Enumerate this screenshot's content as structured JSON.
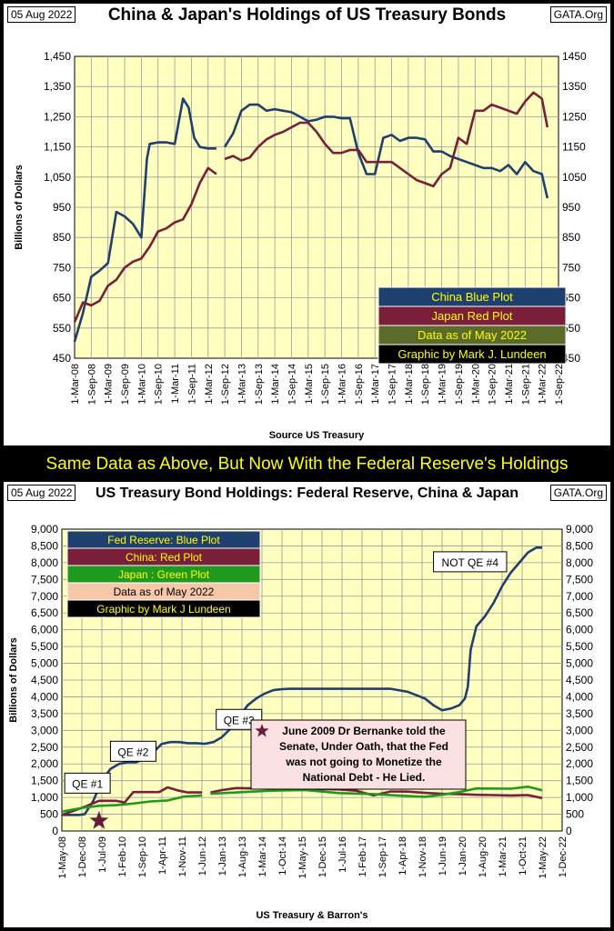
{
  "banner": "Same Data as Above, But Now With the Federal Reserve's Holdings",
  "colors": {
    "plot_bg": "#ffffc0",
    "blue": "#1f3f6e",
    "red": "#7a1f3a",
    "green": "#1f9a1f"
  },
  "chart_data": [
    {
      "type": "line",
      "date_label": "05 Aug 2022",
      "source_tag": "GATA.Org",
      "title": "China & Japan's Holdings of US Treasury Bonds",
      "xlabel": "Source US Treasury",
      "ylabel": "Billions  of  Dollars",
      "ylim": [
        450,
        1450
      ],
      "yticks_left": [
        "450",
        "550",
        "650",
        "750",
        "850",
        "950",
        "1,050",
        "1,150",
        "1,250",
        "1,350",
        "1,450"
      ],
      "yticks_right": [
        "450",
        "550",
        "650",
        "750",
        "850",
        "950",
        "1050",
        "1150",
        "1250",
        "1350",
        "1450"
      ],
      "xticks": [
        "1-Mar-08",
        "1-Sep-08",
        "1-Mar-09",
        "1-Sep-09",
        "1-Mar-10",
        "1-Sep-10",
        "1-Mar-11",
        "1-Sep-11",
        "1-Mar-12",
        "1-Sep-12",
        "1-Mar-13",
        "1-Sep-13",
        "1-Mar-14",
        "1-Sep-14",
        "1-Mar-15",
        "1-Sep-15",
        "1-Mar-16",
        "1-Sep-16",
        "1-Mar-17",
        "1-Sep-17",
        "1-Mar-18",
        "1-Sep-18",
        "1-Mar-19",
        "1-Sep-19",
        "1-Mar-20",
        "1-Sep-20",
        "1-Mar-21",
        "1-Sep-21",
        "1-Mar-22",
        "1-Sep-22"
      ],
      "legend": [
        "China Blue Plot",
        "Japan Red Plot",
        "Data as of May 2022",
        "Graphic by Mark J. Lundeen"
      ],
      "legend_placement": "bottom-right",
      "grid": true,
      "x_range": [
        "2008-03",
        "2022-09"
      ],
      "series": [
        {
          "name": "China Blue Plot",
          "color": "#1f3f6e",
          "x": [
            "2008-03",
            "2008-06",
            "2008-09",
            "2008-12",
            "2009-03",
            "2009-06",
            "2009-09",
            "2009-12",
            "2010-03",
            "2010-05",
            "2010-06",
            "2010-09",
            "2010-12",
            "2011-03",
            "2011-06",
            "2011-08",
            "2011-10",
            "2011-12",
            "2012-03",
            "2012-06",
            null,
            "2012-09",
            "2012-12",
            "2013-03",
            "2013-06",
            "2013-09",
            "2013-12",
            "2014-03",
            "2014-06",
            "2014-09",
            "2014-12",
            "2015-03",
            "2015-06",
            "2015-09",
            "2015-12",
            "2016-03",
            "2016-06",
            "2016-09",
            "2016-12",
            "2017-03",
            "2017-06",
            "2017-09",
            "2017-12",
            "2018-03",
            "2018-06",
            "2018-09",
            "2018-12",
            "2019-03",
            "2019-06",
            "2019-09",
            "2019-12",
            "2020-03",
            "2020-06",
            "2020-09",
            "2020-12",
            "2021-03",
            "2021-06",
            "2021-09",
            "2021-12",
            "2022-03",
            "2022-05"
          ],
          "y": [
            505,
            600,
            720,
            740,
            765,
            935,
            920,
            895,
            850,
            1110,
            1160,
            1165,
            1165,
            1160,
            1310,
            1280,
            1180,
            1150,
            1145,
            1145,
            null,
            1150,
            1195,
            1270,
            1290,
            1290,
            1270,
            1275,
            1270,
            1265,
            1250,
            1235,
            1240,
            1250,
            1250,
            1245,
            1245,
            1130,
            1060,
            1060,
            1180,
            1190,
            1170,
            1180,
            1180,
            1175,
            1135,
            1135,
            1120,
            1110,
            1100,
            1090,
            1080,
            1080,
            1070,
            1090,
            1060,
            1100,
            1070,
            1060,
            980
          ]
        },
        {
          "name": "Japan Red Plot",
          "color": "#7a1f3a",
          "x": [
            "2008-03",
            "2008-06",
            "2008-09",
            "2008-12",
            "2009-03",
            "2009-06",
            "2009-09",
            "2009-12",
            "2010-03",
            "2010-06",
            "2010-09",
            "2010-12",
            "2011-03",
            "2011-06",
            "2011-09",
            "2011-12",
            "2012-03",
            "2012-06",
            null,
            "2012-09",
            "2012-12",
            "2013-03",
            "2013-06",
            "2013-09",
            "2013-12",
            "2014-03",
            "2014-06",
            "2014-09",
            "2014-12",
            "2015-03",
            "2015-06",
            "2015-09",
            "2015-12",
            "2016-03",
            "2016-06",
            "2016-09",
            "2016-12",
            "2017-03",
            "2017-06",
            "2017-09",
            "2017-12",
            "2018-03",
            "2018-06",
            "2018-09",
            "2018-12",
            "2019-03",
            "2019-06",
            "2019-09",
            "2019-12",
            "2020-03",
            "2020-06",
            "2020-09",
            "2020-12",
            "2021-03",
            "2021-06",
            "2021-09",
            "2021-12",
            "2022-03",
            "2022-05"
          ],
          "y": [
            570,
            635,
            625,
            640,
            690,
            710,
            750,
            770,
            780,
            820,
            870,
            880,
            900,
            910,
            960,
            1030,
            1080,
            1060,
            null,
            1110,
            1120,
            1105,
            1115,
            1150,
            1175,
            1190,
            1200,
            1215,
            1230,
            1230,
            1200,
            1160,
            1130,
            1130,
            1140,
            1140,
            1100,
            1100,
            1100,
            1100,
            1080,
            1060,
            1040,
            1030,
            1020,
            1060,
            1080,
            1180,
            1160,
            1270,
            1270,
            1290,
            1280,
            1270,
            1260,
            1300,
            1330,
            1310,
            1215
          ]
        }
      ]
    },
    {
      "type": "line",
      "date_label": "05 Aug 2022",
      "source_tag": "GATA.Org",
      "title": "US Treasury Bond Holdings: Federal Reserve, China & Japan",
      "xlabel": "US Treasury & Barron's",
      "ylabel": "Billions of Dollars",
      "ylim": [
        0,
        9000
      ],
      "yticks": [
        "0",
        "500",
        "1,000",
        "1,500",
        "2,000",
        "2,500",
        "3,000",
        "3,500",
        "4,000",
        "4,500",
        "5,000",
        "5,500",
        "6,000",
        "6,500",
        "7,000",
        "7,500",
        "8,000",
        "8,500",
        "9,000"
      ],
      "xticks": [
        "1-May-08",
        "1-Dec-08",
        "1-Jul-09",
        "1-Feb-10",
        "1-Sep-10",
        "1-Apr-11",
        "1-Nov-11",
        "1-Jun-12",
        "1-Jan-13",
        "1-Aug-13",
        "1-Mar-14",
        "1-Oct-14",
        "1-May-15",
        "1-Dec-15",
        "1-Jul-16",
        "1-Feb-17",
        "1-Sep-17",
        "1-Apr-18",
        "1-Nov-18",
        "1-Jun-19",
        "1-Jan-20",
        "1-Aug-20",
        "1-Mar-21",
        "1-Oct-21",
        "1-May-22",
        "1-Dec-22"
      ],
      "legend": [
        "Fed Reserve: Blue Plot",
        "China: Red Plot",
        "Japan : Green Plot",
        "Data as of May 2022",
        "Graphic by Mark J Lundeen"
      ],
      "legend_placement": "top-left",
      "grid": true,
      "x_range": [
        "2008-05",
        "2022-12"
      ],
      "annotations": [
        {
          "text": "QE #1",
          "x": "2008-06",
          "y": 1400
        },
        {
          "text": "QE #2",
          "x": "2009-10",
          "y": 2350
        },
        {
          "text": "QE #3",
          "x": "2012-11",
          "y": 3300
        },
        {
          "text": "NOT QE #4",
          "x": "2019-03",
          "y": 8000
        }
      ],
      "note": [
        "June 2009 Dr Bernanke told the",
        "Senate, Under Oath, that the Fed",
        "was not going to Monetize the",
        "National Debt - He Lied."
      ],
      "marker": {
        "x": "2009-06",
        "y": 300
      },
      "series": [
        {
          "name": "Fed Reserve: Blue Plot",
          "color": "#1f3f6e",
          "x": [
            "2008-05",
            "2008-08",
            "2008-11",
            "2009-01",
            "2009-04",
            "2009-07",
            "2009-10",
            "2010-01",
            "2010-04",
            "2010-07",
            "2010-10",
            "2011-01",
            "2011-04",
            "2011-07",
            "2011-10",
            "2012-01",
            "2012-04",
            "2012-07",
            "2012-10",
            "2013-01",
            "2013-04",
            "2013-07",
            "2013-10",
            "2014-01",
            "2014-04",
            "2014-07",
            "2014-10",
            "2015-01",
            "2015-06",
            "2016-01",
            "2016-06",
            "2017-01",
            "2017-06",
            "2017-12",
            "2018-06",
            "2018-12",
            "2019-03",
            "2019-06",
            "2019-09",
            "2019-12",
            "2020-02",
            "2020-03",
            "2020-04",
            "2020-06",
            "2020-09",
            "2020-12",
            "2021-03",
            "2021-06",
            "2021-09",
            "2021-12",
            "2022-03",
            "2022-05"
          ],
          "y": [
            480,
            480,
            480,
            500,
            900,
            1500,
            1850,
            2000,
            2050,
            2050,
            2150,
            2350,
            2600,
            2650,
            2650,
            2620,
            2620,
            2600,
            2650,
            2800,
            3050,
            3400,
            3750,
            3950,
            4100,
            4200,
            4230,
            4240,
            4240,
            4240,
            4240,
            4240,
            4240,
            4240,
            4150,
            3950,
            3750,
            3600,
            3650,
            3750,
            3950,
            4300,
            5400,
            6100,
            6400,
            6800,
            7300,
            7700,
            8000,
            8300,
            8450,
            8450
          ]
        },
        {
          "name": "China: Red Plot",
          "color": "#7a1f3a",
          "x": [
            "2008-05",
            "2008-09",
            "2009-01",
            "2009-06",
            "2009-12",
            "2010-03",
            "2010-06",
            "2010-12",
            "2011-03",
            "2011-06",
            "2011-10",
            "2012-01",
            "2012-06",
            null,
            "2012-09",
            "2013-01",
            "2013-06",
            "2013-12",
            "2014-06",
            "2014-12",
            "2015-06",
            "2015-12",
            "2016-06",
            "2016-12",
            "2017-06",
            "2017-12",
            "2018-06",
            "2018-12",
            "2019-06",
            "2019-12",
            "2020-06",
            "2020-12",
            "2021-06",
            "2021-12",
            "2022-05"
          ],
          "y": [
            480,
            600,
            720,
            900,
            900,
            850,
            1160,
            1160,
            1160,
            1300,
            1200,
            1150,
            1150,
            null,
            1150,
            1220,
            1280,
            1270,
            1270,
            1260,
            1240,
            1250,
            1240,
            1200,
            1060,
            1180,
            1175,
            1135,
            1110,
            1100,
            1080,
            1070,
            1060,
            1070,
            980
          ]
        },
        {
          "name": "Japan : Green Plot",
          "color": "#1f9a1f",
          "x": [
            "2008-05",
            "2008-09",
            "2009-01",
            "2009-06",
            "2009-12",
            "2010-06",
            "2010-12",
            "2011-06",
            "2011-12",
            "2012-06",
            null,
            "2012-09",
            "2013-06",
            "2014-06",
            "2015-06",
            "2016-06",
            "2017-06",
            "2018-06",
            "2018-12",
            "2019-06",
            "2019-12",
            "2020-06",
            "2021-06",
            "2021-12",
            "2022-05"
          ],
          "y": [
            580,
            640,
            700,
            750,
            770,
            820,
            880,
            910,
            1030,
            1060,
            null,
            1110,
            1150,
            1200,
            1220,
            1130,
            1100,
            1040,
            1020,
            1080,
            1160,
            1270,
            1260,
            1320,
            1215
          ]
        }
      ]
    }
  ]
}
